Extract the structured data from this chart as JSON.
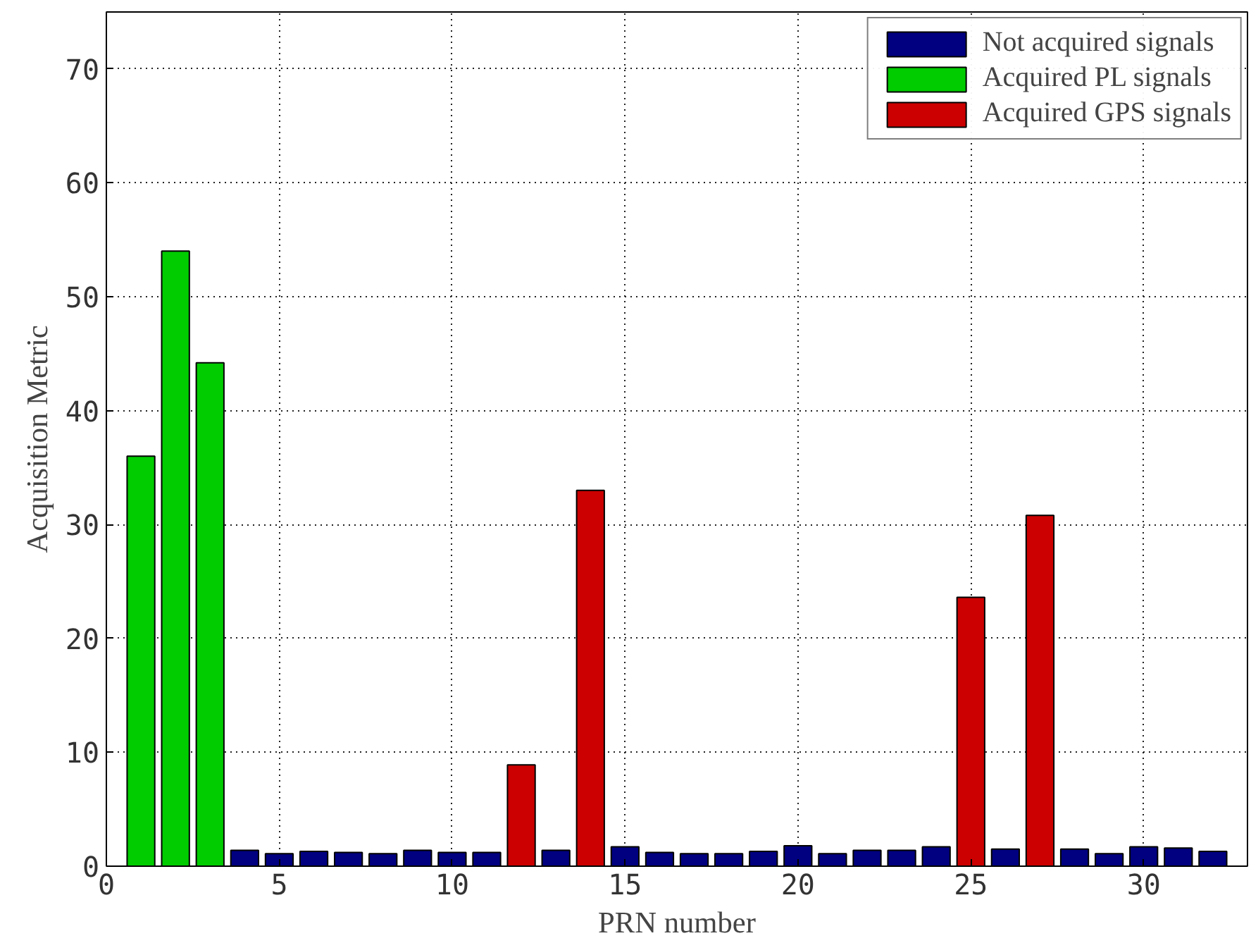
{
  "chart_data": {
    "type": "bar",
    "xlabel": "PRN number",
    "ylabel": "Acquisition Metric",
    "x": [
      1,
      2,
      3,
      4,
      5,
      6,
      7,
      8,
      9,
      10,
      11,
      12,
      13,
      14,
      15,
      16,
      17,
      18,
      19,
      20,
      21,
      22,
      23,
      24,
      25,
      26,
      27,
      28,
      29,
      30,
      31,
      32
    ],
    "series": [
      {
        "name": "Not acquired signals",
        "color": "#000080",
        "values": [
          null,
          null,
          null,
          1.4,
          1.1,
          1.3,
          1.2,
          1.1,
          1.4,
          1.2,
          1.2,
          null,
          1.4,
          null,
          1.7,
          1.2,
          1.1,
          1.1,
          1.3,
          1.8,
          1.1,
          1.4,
          1.4,
          1.7,
          null,
          1.5,
          null,
          1.5,
          1.1,
          1.7,
          1.6,
          1.3
        ]
      },
      {
        "name": "Acquired PL signals",
        "color": "#00cc00",
        "values": [
          36,
          54,
          44.2,
          null,
          null,
          null,
          null,
          null,
          null,
          null,
          null,
          null,
          null,
          null,
          null,
          null,
          null,
          null,
          null,
          null,
          null,
          null,
          null,
          null,
          null,
          null,
          null,
          null,
          null,
          null,
          null,
          null
        ]
      },
      {
        "name": "Acquired GPS signals",
        "color": "#cc0000",
        "values": [
          null,
          null,
          null,
          null,
          null,
          null,
          null,
          null,
          null,
          null,
          null,
          8.9,
          null,
          33,
          null,
          null,
          null,
          null,
          null,
          null,
          null,
          null,
          null,
          null,
          23.6,
          null,
          30.8,
          null,
          null,
          null,
          null,
          null
        ]
      }
    ],
    "xlim": [
      0,
      33
    ],
    "xticks": [
      0,
      5,
      10,
      15,
      20,
      25,
      30
    ],
    "ylim": [
      0,
      75
    ],
    "yticks": [
      0,
      10,
      20,
      30,
      40,
      50,
      60,
      70
    ],
    "grid": true,
    "legend": "top right"
  }
}
